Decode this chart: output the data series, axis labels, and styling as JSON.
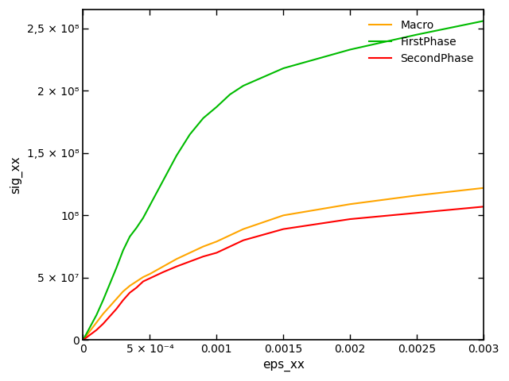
{
  "xlabel": "eps_xx",
  "ylabel": "sig_xx",
  "xlim": [
    0,
    0.003
  ],
  "ylim": [
    0,
    265000000.0
  ],
  "yticks": [
    0,
    50000000.0,
    100000000.0,
    150000000.0,
    200000000.0,
    250000000.0
  ],
  "ytick_labels": [
    "0",
    "5 × 10⁷",
    "10⁸",
    "1,5 × 10⁸",
    "2 × 10⁸",
    "2,5 × 10⁸"
  ],
  "xticks": [
    0,
    0.0005,
    0.001,
    0.0015,
    0.002,
    0.0025,
    0.003
  ],
  "xtick_labels": [
    "0",
    "5 × 10⁻⁴",
    "0.001",
    "0.0015",
    "0.002",
    "0.0025",
    "0.003"
  ],
  "macro_color": "#FFA500",
  "firstphase_color": "#00BB00",
  "secondphase_color": "#FF0000",
  "macro_x": [
    0,
    5e-05,
    0.0001,
    0.00015,
    0.0002,
    0.00025,
    0.0003,
    0.00035,
    0.0004,
    0.00045,
    0.0005,
    0.0006,
    0.0007,
    0.0008,
    0.0009,
    0.001,
    0.0011,
    0.0012,
    0.0015,
    0.002,
    0.0025,
    0.003
  ],
  "macro_y": [
    0,
    7000000.0,
    14000000.0,
    21000000.0,
    27000000.0,
    33000000.0,
    39000000.0,
    43500000.0,
    47000000.0,
    50500000.0,
    53000000.0,
    59000000.0,
    65000000.0,
    70000000.0,
    75000000.0,
    79000000.0,
    84000000.0,
    89000000.0,
    100000000.0,
    109000000.0,
    116000000.0,
    122000000.0
  ],
  "firstphase_x": [
    0,
    5e-05,
    0.0001,
    0.00015,
    0.0002,
    0.00025,
    0.0003,
    0.00035,
    0.0004,
    0.00045,
    0.0005,
    0.0006,
    0.0007,
    0.0008,
    0.0009,
    0.001,
    0.0011,
    0.0012,
    0.0015,
    0.002,
    0.0025,
    0.003
  ],
  "firstphase_y": [
    0,
    10000000.0,
    20000000.0,
    32000000.0,
    45000000.0,
    58000000.0,
    72000000.0,
    83000000.0,
    90000000.0,
    98000000.0,
    108000000.0,
    128000000.0,
    148000000.0,
    165000000.0,
    178000000.0,
    187000000.0,
    197000000.0,
    204000000.0,
    218000000.0,
    233000000.0,
    245000000.0,
    256000000.0
  ],
  "secondphase_x": [
    0,
    5e-05,
    0.0001,
    0.00015,
    0.0002,
    0.00025,
    0.0003,
    0.00035,
    0.0004,
    0.00045,
    0.0005,
    0.0006,
    0.0007,
    0.0008,
    0.0009,
    0.001,
    0.0011,
    0.0012,
    0.0015,
    0.002,
    0.0025,
    0.003
  ],
  "secondphase_y": [
    0,
    4000000.0,
    8000000.0,
    13000000.0,
    19000000.0,
    25000000.0,
    32000000.0,
    38000000.0,
    42000000.0,
    47000000.0,
    49500000.0,
    54500000.0,
    59000000.0,
    63000000.0,
    67000000.0,
    70000000.0,
    75000000.0,
    80000000.0,
    89000000.0,
    97000000.0,
    102000000.0,
    107000000.0
  ],
  "legend_labels": [
    "Macro",
    "FirstPhase",
    "SecondPhase"
  ],
  "background_color": "#ffffff",
  "linewidth": 1.5
}
